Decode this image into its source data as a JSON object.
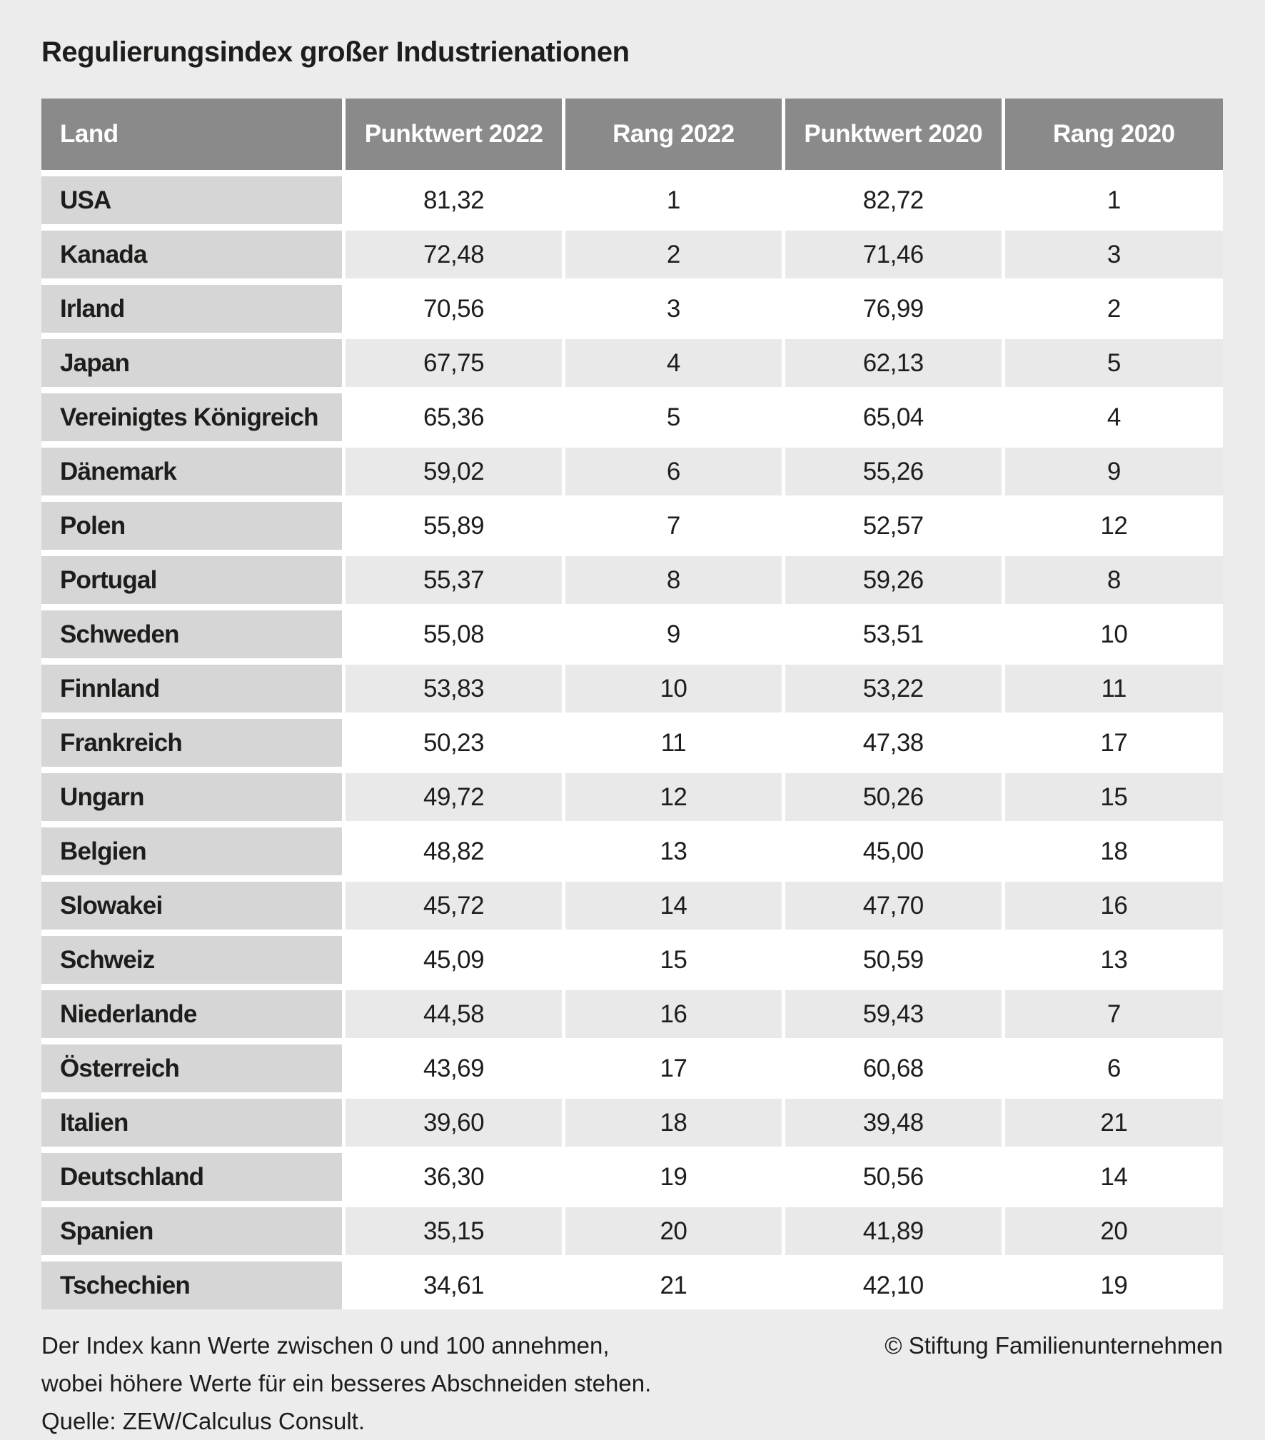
{
  "title": "Regulierungsindex großer Industrienationen",
  "chart_data": {
    "type": "table",
    "title": "Regulierungsindex großer Industrienationen",
    "columns": [
      "Land",
      "Punktwert 2022",
      "Rang 2022",
      "Punktwert 2020",
      "Rang 2020"
    ],
    "rows": [
      [
        "USA",
        "81,32",
        "1",
        "82,72",
        "1"
      ],
      [
        "Kanada",
        "72,48",
        "2",
        "71,46",
        "3"
      ],
      [
        "Irland",
        "70,56",
        "3",
        "76,99",
        "2"
      ],
      [
        "Japan",
        "67,75",
        "4",
        "62,13",
        "5"
      ],
      [
        "Vereinigtes Königreich",
        "65,36",
        "5",
        "65,04",
        "4"
      ],
      [
        "Dänemark",
        "59,02",
        "6",
        "55,26",
        "9"
      ],
      [
        "Polen",
        "55,89",
        "7",
        "52,57",
        "12"
      ],
      [
        "Portugal",
        "55,37",
        "8",
        "59,26",
        "8"
      ],
      [
        "Schweden",
        "55,08",
        "9",
        "53,51",
        "10"
      ],
      [
        "Finnland",
        "53,83",
        "10",
        "53,22",
        "11"
      ],
      [
        "Frankreich",
        "50,23",
        "11",
        "47,38",
        "17"
      ],
      [
        "Ungarn",
        "49,72",
        "12",
        "50,26",
        "15"
      ],
      [
        "Belgien",
        "48,82",
        "13",
        "45,00",
        "18"
      ],
      [
        "Slowakei",
        "45,72",
        "14",
        "47,70",
        "16"
      ],
      [
        "Schweiz",
        "45,09",
        "15",
        "50,59",
        "13"
      ],
      [
        "Niederlande",
        "44,58",
        "16",
        "59,43",
        "7"
      ],
      [
        "Österreich",
        "43,69",
        "17",
        "60,68",
        "6"
      ],
      [
        "Italien",
        "39,60",
        "18",
        "39,48",
        "21"
      ],
      [
        "Deutschland",
        "36,30",
        "19",
        "50,56",
        "14"
      ],
      [
        "Spanien",
        "35,15",
        "20",
        "41,89",
        "20"
      ],
      [
        "Tschechien",
        "34,61",
        "21",
        "42,10",
        "19"
      ]
    ],
    "value_range_note": "Index 0 bis 100",
    "legend_position": "none",
    "grid": false
  },
  "footnote": {
    "line1": "Der Index kann Werte zwischen 0 und 100 annehmen,",
    "line2": "wobei höhere Werte für ein besseres Abschneiden stehen.",
    "line3": "Quelle: ZEW/Calculus Consult.",
    "copyright": "© Stiftung Familienunternehmen"
  },
  "colors": {
    "page_bg": "#ECECEC",
    "header_bg": "#8A8A8A",
    "header_text": "#FFFFFF",
    "land_cell_bg": "#D6D6D6",
    "row_white": "#FFFFFF",
    "row_gray": "#E9E9E9",
    "separator": "#FFFFFF",
    "text": "#1D1D1B"
  }
}
